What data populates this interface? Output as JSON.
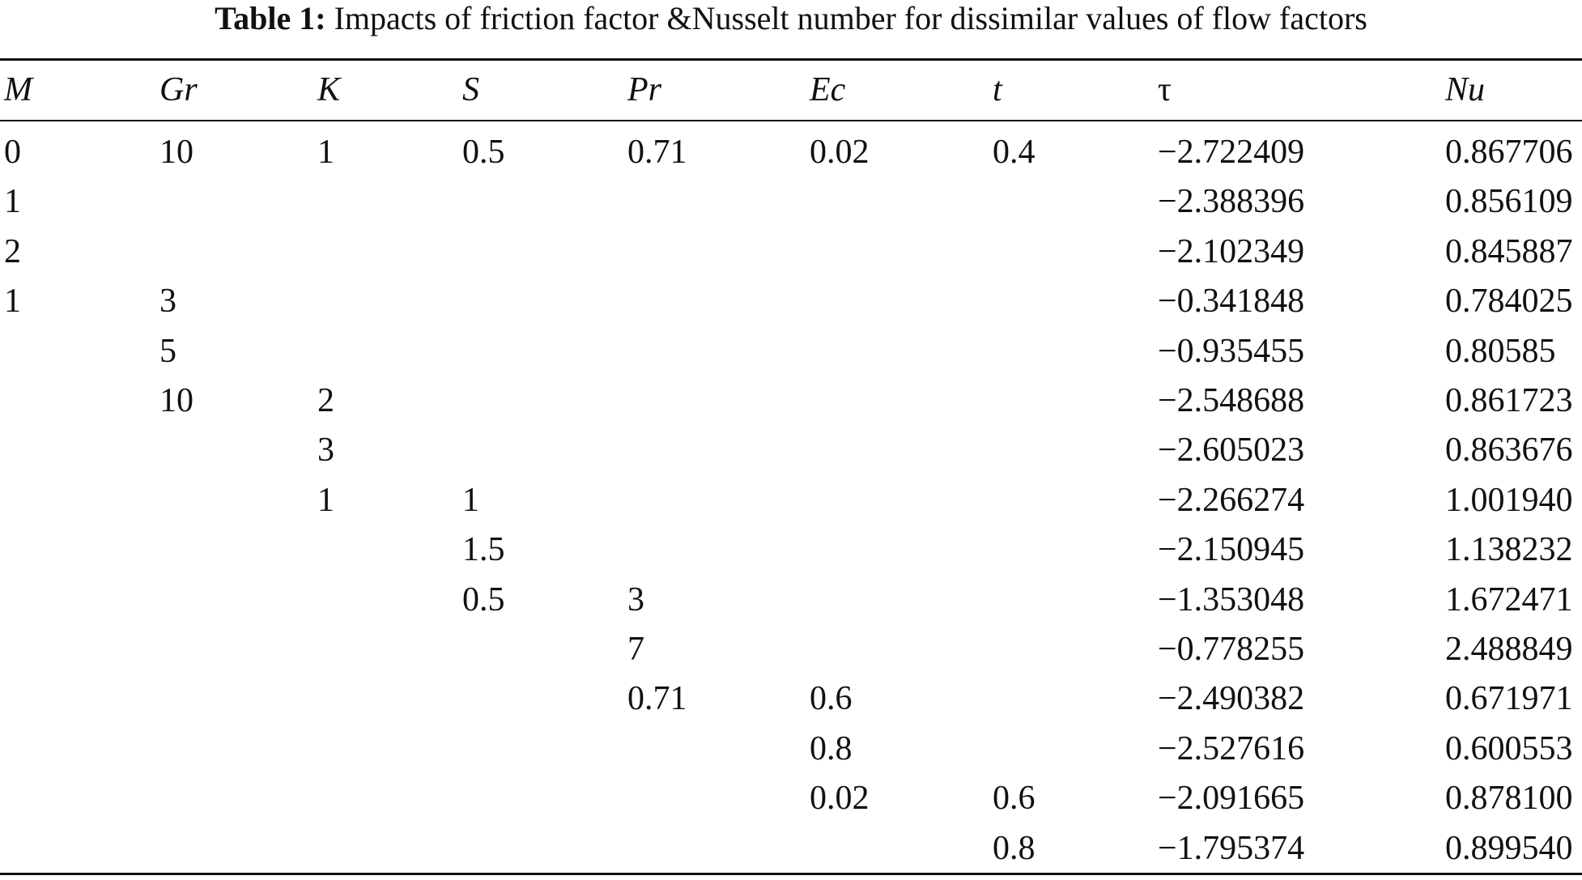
{
  "caption": {
    "label": "Table 1:",
    "text": "Impacts of friction factor &Nusselt number for dissimilar values of flow factors"
  },
  "columns": [
    "M",
    "Gr",
    "K",
    "S",
    "Pr",
    "Ec",
    "t",
    "τ",
    "Nu"
  ],
  "rows": [
    [
      "0",
      "10",
      "1",
      "0.5",
      "0.71",
      "0.02",
      "0.4",
      "−2.722409",
      "0.867706"
    ],
    [
      "1",
      "",
      "",
      "",
      "",
      "",
      "",
      "−2.388396",
      "0.856109"
    ],
    [
      "2",
      "",
      "",
      "",
      "",
      "",
      "",
      "−2.102349",
      "0.845887"
    ],
    [
      "1",
      "3",
      "",
      "",
      "",
      "",
      "",
      "−0.341848",
      "0.784025"
    ],
    [
      "",
      "5",
      "",
      "",
      "",
      "",
      "",
      "−0.935455",
      "0.80585"
    ],
    [
      "",
      "10",
      "2",
      "",
      "",
      "",
      "",
      "−2.548688",
      "0.861723"
    ],
    [
      "",
      "",
      "3",
      "",
      "",
      "",
      "",
      "−2.605023",
      "0.863676"
    ],
    [
      "",
      "",
      "1",
      "1",
      "",
      "",
      "",
      "−2.266274",
      "1.001940"
    ],
    [
      "",
      "",
      "",
      "1.5",
      "",
      "",
      "",
      "−2.150945",
      "1.138232"
    ],
    [
      "",
      "",
      "",
      "0.5",
      "3",
      "",
      "",
      "−1.353048",
      "1.672471"
    ],
    [
      "",
      "",
      "",
      "",
      "7",
      "",
      "",
      "−0.778255",
      "2.488849"
    ],
    [
      "",
      "",
      "",
      "",
      "0.71",
      "0.6",
      "",
      "−2.490382",
      "0.671971"
    ],
    [
      "",
      "",
      "",
      "",
      "",
      "0.8",
      "",
      "−2.527616",
      "0.600553"
    ],
    [
      "",
      "",
      "",
      "",
      "",
      "0.02",
      "0.6",
      "−2.091665",
      "0.878100"
    ],
    [
      "",
      "",
      "",
      "",
      "",
      "",
      "0.8",
      "−1.795374",
      "0.899540"
    ]
  ]
}
